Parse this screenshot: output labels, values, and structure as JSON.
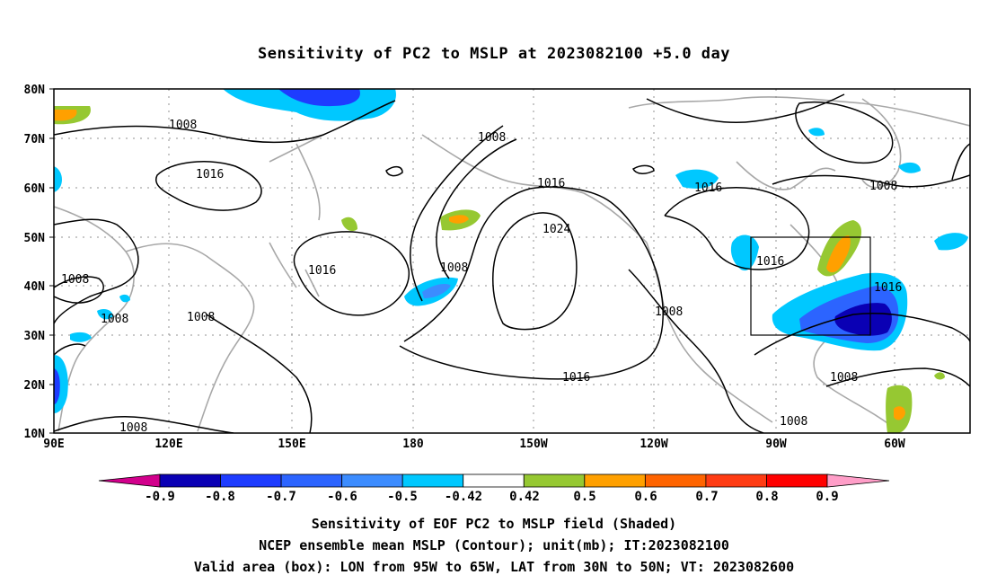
{
  "title": "Sensitivity of PC2 to MSLP at 2023082100 +5.0 day",
  "map": {
    "lat_ticks": [
      "80N",
      "70N",
      "60N",
      "50N",
      "40N",
      "30N",
      "20N",
      "10N"
    ],
    "lon_ticks": [
      "90E",
      "120E",
      "150E",
      "180",
      "150W",
      "120W",
      "90W",
      "60W"
    ],
    "contour_labels": [
      "1008",
      "1016",
      "1008",
      "1016",
      "1016",
      "1024",
      "1008",
      "1008",
      "1016",
      "1008",
      "1008",
      "1016",
      "1008",
      "1016",
      "1016",
      "1008",
      "1008",
      "1008",
      "1016",
      "1008"
    ],
    "valid_box": {
      "lon_from": "95W",
      "lon_to": "65W",
      "lat_from": "30N",
      "lat_to": "50N"
    }
  },
  "colorbar": {
    "labels": [
      "-0.9",
      "-0.8",
      "-0.7",
      "-0.6",
      "-0.5",
      "-0.42",
      "0.42",
      "0.5",
      "0.6",
      "0.7",
      "0.8",
      "0.9"
    ],
    "colors": [
      "#0a00b4",
      "#1e3cff",
      "#2c64ff",
      "#3c8cff",
      "#00c8ff",
      "#ffffff",
      "#96c832",
      "#ffa000",
      "#ff6400",
      "#ff3c14",
      "#ff0000"
    ],
    "low_end_color": "#d2008c",
    "high_end_color": "#ff9ec8"
  },
  "footer": {
    "line1": "Sensitivity of EOF PC2 to MSLP field (Shaded)",
    "line2": "NCEP ensemble mean MSLP (Contour); unit(mb); IT:2023082100",
    "line3": "Valid area (box): LON from 95W to 65W, LAT from 30N to 50N; VT: 2023082600"
  }
}
